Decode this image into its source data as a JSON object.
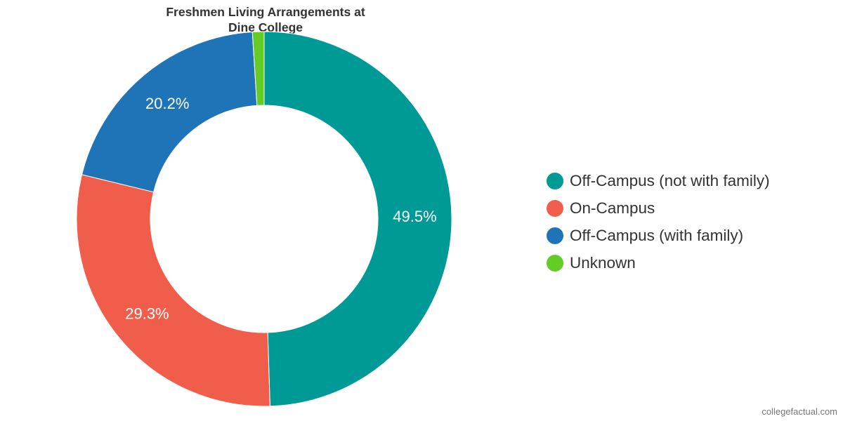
{
  "chart_data": {
    "type": "pie",
    "variant": "donut",
    "title": "Freshmen Living Arrangements at Dine College",
    "title_lines": [
      "Freshmen Living Arrangements at",
      "Dine College"
    ],
    "legend_position": "right",
    "slices": [
      {
        "name": "Off-Campus (not with family)",
        "value": 49.5,
        "label": "49.5%",
        "color": "#009a96"
      },
      {
        "name": "On-Campus",
        "value": 29.3,
        "label": "29.3%",
        "color": "#f05d4b"
      },
      {
        "name": "Off-Campus (with family)",
        "value": 20.2,
        "label": "20.2%",
        "color": "#1f74b8"
      },
      {
        "name": "Unknown",
        "value": 1.0,
        "label": "",
        "color": "#63cc27"
      }
    ]
  },
  "credit": "collegefactual.com"
}
